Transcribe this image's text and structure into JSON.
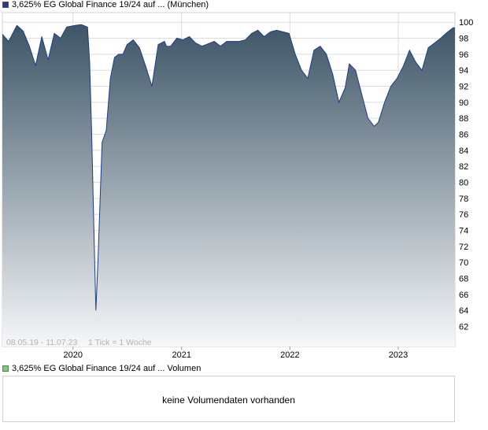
{
  "legend": {
    "price_label": "3,625% EG Global Finance 19/24 auf ... (München)",
    "price_color": "#1f3b8a",
    "volume_label": "3,625% EG Global Finance 19/24 auf ... Volumen",
    "volume_color": "#7fc97f"
  },
  "range_text": "08.05.19 - 11.07.23",
  "tick_text": "1 Tick = 1 Woche",
  "volume_message": "keine Volumendaten vorhanden",
  "colors": {
    "line": "#1a3d8f",
    "fill_top": "#3d5566",
    "fill_bottom": "#f6f7f9",
    "grid": "#dddddd"
  },
  "chart_data": {
    "type": "area",
    "title": "3,625% EG Global Finance 19/24 auf ... (München)",
    "xlabel": "",
    "ylabel": "",
    "y_axis_position": "right",
    "ylim": [
      59.5,
      101.2
    ],
    "y_ticks": [
      62,
      64,
      66,
      68,
      70,
      72,
      74,
      76,
      78,
      80,
      82,
      84,
      86,
      88,
      90,
      92,
      94,
      96,
      98,
      100
    ],
    "xlim": [
      "2019-05-08",
      "2023-07-11"
    ],
    "x_ticks": [
      {
        "date": "2020-01-01",
        "label": "2020"
      },
      {
        "date": "2021-01-01",
        "label": "2021"
      },
      {
        "date": "2022-01-01",
        "label": "2022"
      },
      {
        "date": "2023-01-01",
        "label": "2023"
      }
    ],
    "grid": true,
    "series": [
      {
        "name": "3,625% EG Global Finance 19/24 auf ... (München)",
        "x": [
          "2019-05-08",
          "2019-05-29",
          "2019-06-26",
          "2019-07-17",
          "2019-08-07",
          "2019-08-28",
          "2019-09-18",
          "2019-10-09",
          "2019-10-30",
          "2019-11-20",
          "2019-12-11",
          "2020-01-08",
          "2020-01-29",
          "2020-02-19",
          "2020-02-26",
          "2020-03-04",
          "2020-03-11",
          "2020-03-18",
          "2020-03-25",
          "2020-04-08",
          "2020-04-22",
          "2020-05-06",
          "2020-05-20",
          "2020-06-03",
          "2020-06-17",
          "2020-07-01",
          "2020-07-22",
          "2020-08-12",
          "2020-09-02",
          "2020-09-23",
          "2020-10-14",
          "2020-11-04",
          "2020-11-11",
          "2020-11-25",
          "2020-12-16",
          "2021-01-06",
          "2021-01-27",
          "2021-02-17",
          "2021-03-10",
          "2021-03-31",
          "2021-04-21",
          "2021-05-12",
          "2021-06-02",
          "2021-06-23",
          "2021-07-14",
          "2021-08-04",
          "2021-08-25",
          "2021-09-15",
          "2021-10-06",
          "2021-10-27",
          "2021-11-17",
          "2021-12-08",
          "2021-12-29",
          "2022-01-19",
          "2022-02-09",
          "2022-03-02",
          "2022-03-23",
          "2022-04-13",
          "2022-05-04",
          "2022-05-25",
          "2022-06-15",
          "2022-07-06",
          "2022-07-20",
          "2022-08-10",
          "2022-08-31",
          "2022-09-21",
          "2022-10-12",
          "2022-10-26",
          "2022-11-16",
          "2022-12-07",
          "2022-12-28",
          "2023-01-18",
          "2023-02-08",
          "2023-03-01",
          "2023-03-22",
          "2023-04-12",
          "2023-05-03",
          "2023-05-24",
          "2023-06-14",
          "2023-07-05",
          "2023-07-11"
        ],
        "y": [
          98.5,
          97.6,
          99.6,
          98.9,
          97.0,
          94.6,
          98.2,
          95.3,
          98.6,
          98.0,
          99.4,
          99.6,
          99.7,
          99.4,
          95.0,
          86.0,
          75.0,
          64.0,
          70.0,
          85.0,
          86.5,
          93.0,
          95.6,
          96.0,
          96.0,
          97.2,
          97.8,
          96.8,
          94.5,
          92.0,
          97.2,
          97.6,
          97.0,
          97.0,
          98.0,
          97.8,
          98.2,
          97.4,
          97.0,
          97.3,
          97.6,
          97.0,
          97.6,
          97.6,
          97.6,
          97.8,
          98.6,
          99.0,
          98.2,
          98.8,
          99.0,
          98.8,
          98.6,
          96.0,
          94.0,
          93.0,
          96.5,
          97.0,
          96.0,
          93.5,
          90.0,
          91.8,
          94.8,
          94.0,
          91.0,
          88.0,
          87.0,
          87.5,
          90.0,
          92.0,
          93.0,
          94.5,
          96.5,
          95.0,
          94.0,
          96.8,
          97.4,
          98.0,
          98.7,
          99.3,
          99.3
        ]
      }
    ]
  }
}
